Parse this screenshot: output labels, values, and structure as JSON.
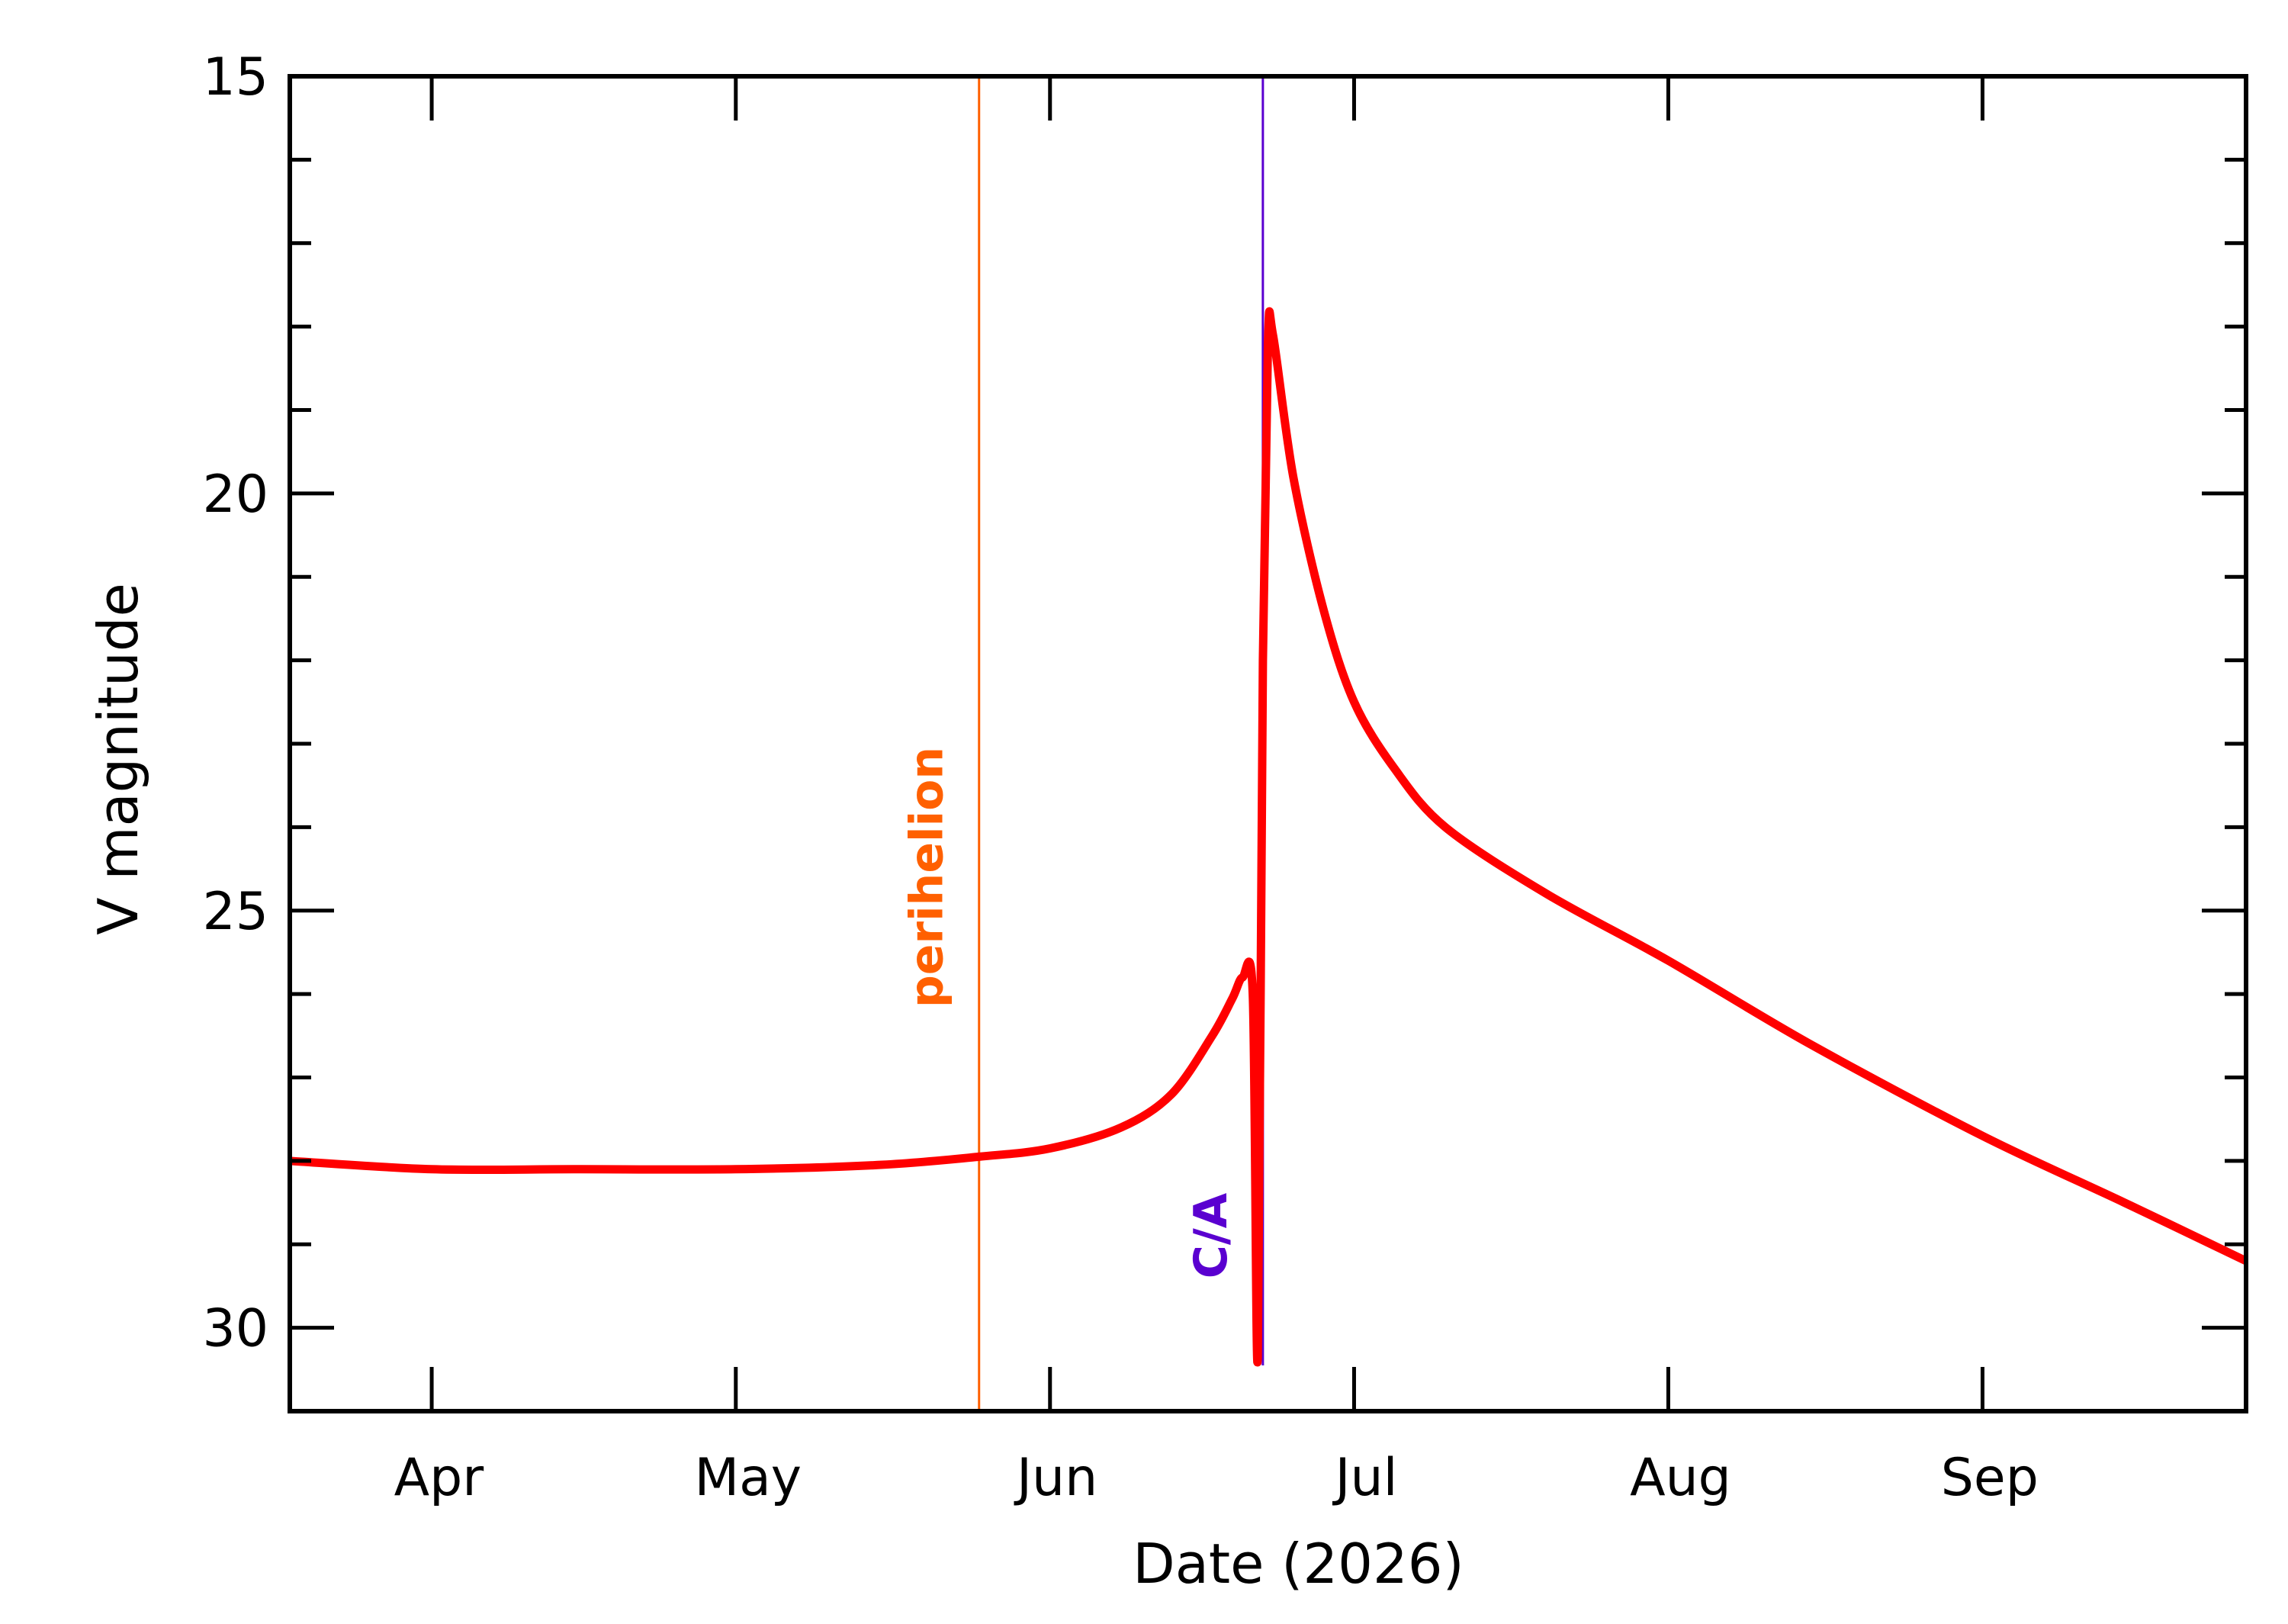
{
  "chart_data": {
    "type": "line",
    "title": "",
    "xlabel": "Date (2026)",
    "ylabel": "V magnitude",
    "x_is_date": true,
    "xlim": [
      "2026-03-18",
      "2026-09-27"
    ],
    "ylim": [
      31,
      15
    ],
    "y_inverted": true,
    "y_major_ticks": [
      15,
      20,
      25,
      30
    ],
    "y_minor_step": 1,
    "x_tick_dates": [
      "2026-04-01",
      "2026-05-01",
      "2026-06-01",
      "2026-07-01",
      "2026-08-01",
      "2026-09-01"
    ],
    "x_tick_labels": [
      "Apr",
      "May",
      "Jun",
      "Jul",
      "Aug",
      "Sep"
    ],
    "grid": false,
    "series": [
      {
        "color": "#ff0000",
        "x": [
          "2026-03-18",
          "2026-04-01",
          "2026-04-15",
          "2026-05-01",
          "2026-05-15",
          "2026-05-25",
          "2026-06-01",
          "2026-06-08",
          "2026-06-13",
          "2026-06-17",
          "2026-06-19",
          "2026-06-20",
          "2026-06-21",
          "2026-06-21T12:00",
          "2026-06-22",
          "2026-06-22T12:00",
          "2026-06-23",
          "2026-06-25",
          "2026-06-28",
          "2026-07-01",
          "2026-07-05",
          "2026-07-10",
          "2026-07-20",
          "2026-08-01",
          "2026-08-15",
          "2026-09-01",
          "2026-09-15",
          "2026-09-27"
        ],
        "y": [
          28.0,
          28.1,
          28.1,
          28.1,
          28.05,
          27.95,
          27.85,
          27.6,
          27.2,
          26.5,
          26.05,
          25.8,
          26.0,
          30.35,
          22.0,
          18.2,
          18.1,
          19.8,
          21.4,
          22.5,
          23.3,
          24.0,
          24.8,
          25.6,
          26.6,
          27.7,
          28.5,
          29.2
        ]
      }
    ],
    "markers": [
      {
        "label": "perihelion",
        "date": "2026-05-25",
        "color": "#ff6000"
      },
      {
        "label": "C/A",
        "date": "2026-06-22",
        "color": "#5a00d0"
      }
    ],
    "colors": {
      "axis": "#000000",
      "curve": "#ff0000",
      "perihelion": "#ff6000",
      "closest_approach": "#5a00d0"
    }
  }
}
